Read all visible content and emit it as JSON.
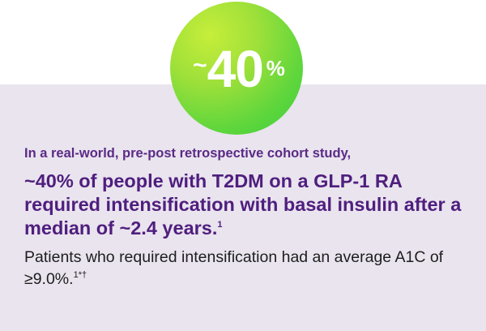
{
  "badge": {
    "tilde": "~",
    "number": "40",
    "percent": "%"
  },
  "intro": "In a real-world, pre-post retrospective cohort study,",
  "headline": {
    "text": "~40% of people with T2DM on a GLP-1 RA required intensification with basal insulin after a median of ~2.4 years.",
    "superscript": "1"
  },
  "body": {
    "text": "Patients who required intensification had an average A1C of ≥9.0%.",
    "superscript": "1*†"
  },
  "colors": {
    "panel_background": "#e9e4ee",
    "headline_purple": "#4f1e7e",
    "badge_green_start": "#c6ee3a",
    "badge_green_end": "#3ecf3f"
  }
}
